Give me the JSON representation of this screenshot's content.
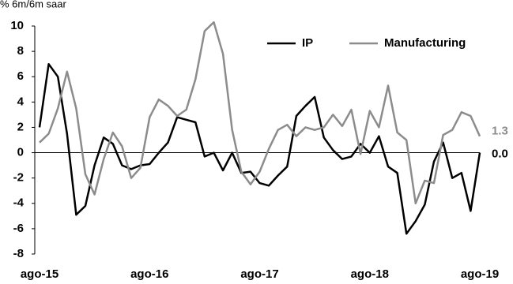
{
  "chart_data": {
    "type": "line",
    "y_axis_label": "% 6m/6m saar",
    "categories": [
      "ago-15",
      null,
      null,
      null,
      null,
      null,
      null,
      null,
      null,
      null,
      null,
      null,
      "ago-16",
      null,
      null,
      null,
      null,
      null,
      null,
      null,
      null,
      null,
      null,
      null,
      "ago-17",
      null,
      null,
      null,
      null,
      null,
      null,
      null,
      null,
      null,
      null,
      null,
      "ago-18",
      null,
      null,
      null,
      null,
      null,
      null,
      null,
      null,
      null,
      null,
      null,
      "ago-19"
    ],
    "series": [
      {
        "name": "IP",
        "color": "#000000",
        "values": [
          2.0,
          7.0,
          6.0,
          1.5,
          -4.9,
          -4.2,
          -1.0,
          1.2,
          0.7,
          -1.0,
          -1.3,
          -1.0,
          -0.9,
          0,
          0.8,
          2.8,
          2.6,
          2.4,
          -0.3,
          0,
          -1.4,
          0,
          -1.6,
          -1.5,
          -2.4,
          -2.6,
          -1.8,
          -1.1,
          2.9,
          3.7,
          4.4,
          1.2,
          0.2,
          -0.5,
          -0.3,
          0.7,
          0,
          1.3,
          -1.1,
          -1.6,
          -6.4,
          -5.4,
          -4.1,
          -0.7,
          0.8,
          -2.0,
          -1.6,
          -4.6,
          0
        ],
        "value_labels": [
          null,
          null,
          null,
          null,
          null,
          null,
          null,
          null,
          null,
          null,
          null,
          null,
          null,
          null,
          null,
          null,
          null,
          null,
          null,
          null,
          null,
          null,
          null,
          null,
          null,
          null,
          null,
          null,
          null,
          null,
          null,
          null,
          null,
          null,
          null,
          null,
          null,
          null,
          null,
          null,
          null,
          null,
          null,
          null,
          null,
          null,
          null,
          null,
          "0.0"
        ]
      },
      {
        "name": "Manufacturing",
        "color": "#8c8c8c",
        "values": [
          0.8,
          1.5,
          3.5,
          6.4,
          3.5,
          -1.7,
          -3.3,
          -0.5,
          1.6,
          0.5,
          -2.0,
          -1.2,
          2.8,
          4.2,
          3.7,
          2.9,
          3.4,
          5.8,
          9.6,
          10.3,
          7.8,
          1.8,
          -1.5,
          -2.5,
          -1.5,
          0.3,
          1.8,
          2.2,
          1.3,
          2.0,
          1.8,
          2.0,
          3.0,
          2.1,
          3.4,
          -0.1,
          3.3,
          2.0,
          5.3,
          1.6,
          1.0,
          -4.0,
          -2.2,
          -2.4,
          1.4,
          1.8,
          3.2,
          2.9,
          1.3
        ],
        "value_labels": [
          null,
          null,
          null,
          null,
          null,
          null,
          null,
          null,
          null,
          null,
          null,
          null,
          null,
          null,
          null,
          null,
          null,
          null,
          null,
          null,
          null,
          null,
          null,
          null,
          null,
          null,
          null,
          null,
          null,
          null,
          null,
          null,
          null,
          null,
          null,
          null,
          null,
          null,
          null,
          null,
          null,
          null,
          null,
          null,
          null,
          null,
          null,
          null,
          "1.3"
        ]
      }
    ],
    "ylim": [
      -8,
      10
    ],
    "yticks": [
      -8,
      -6,
      -4,
      -2,
      0,
      2,
      4,
      6,
      8,
      10
    ],
    "grid": false,
    "legend": "top-right"
  }
}
